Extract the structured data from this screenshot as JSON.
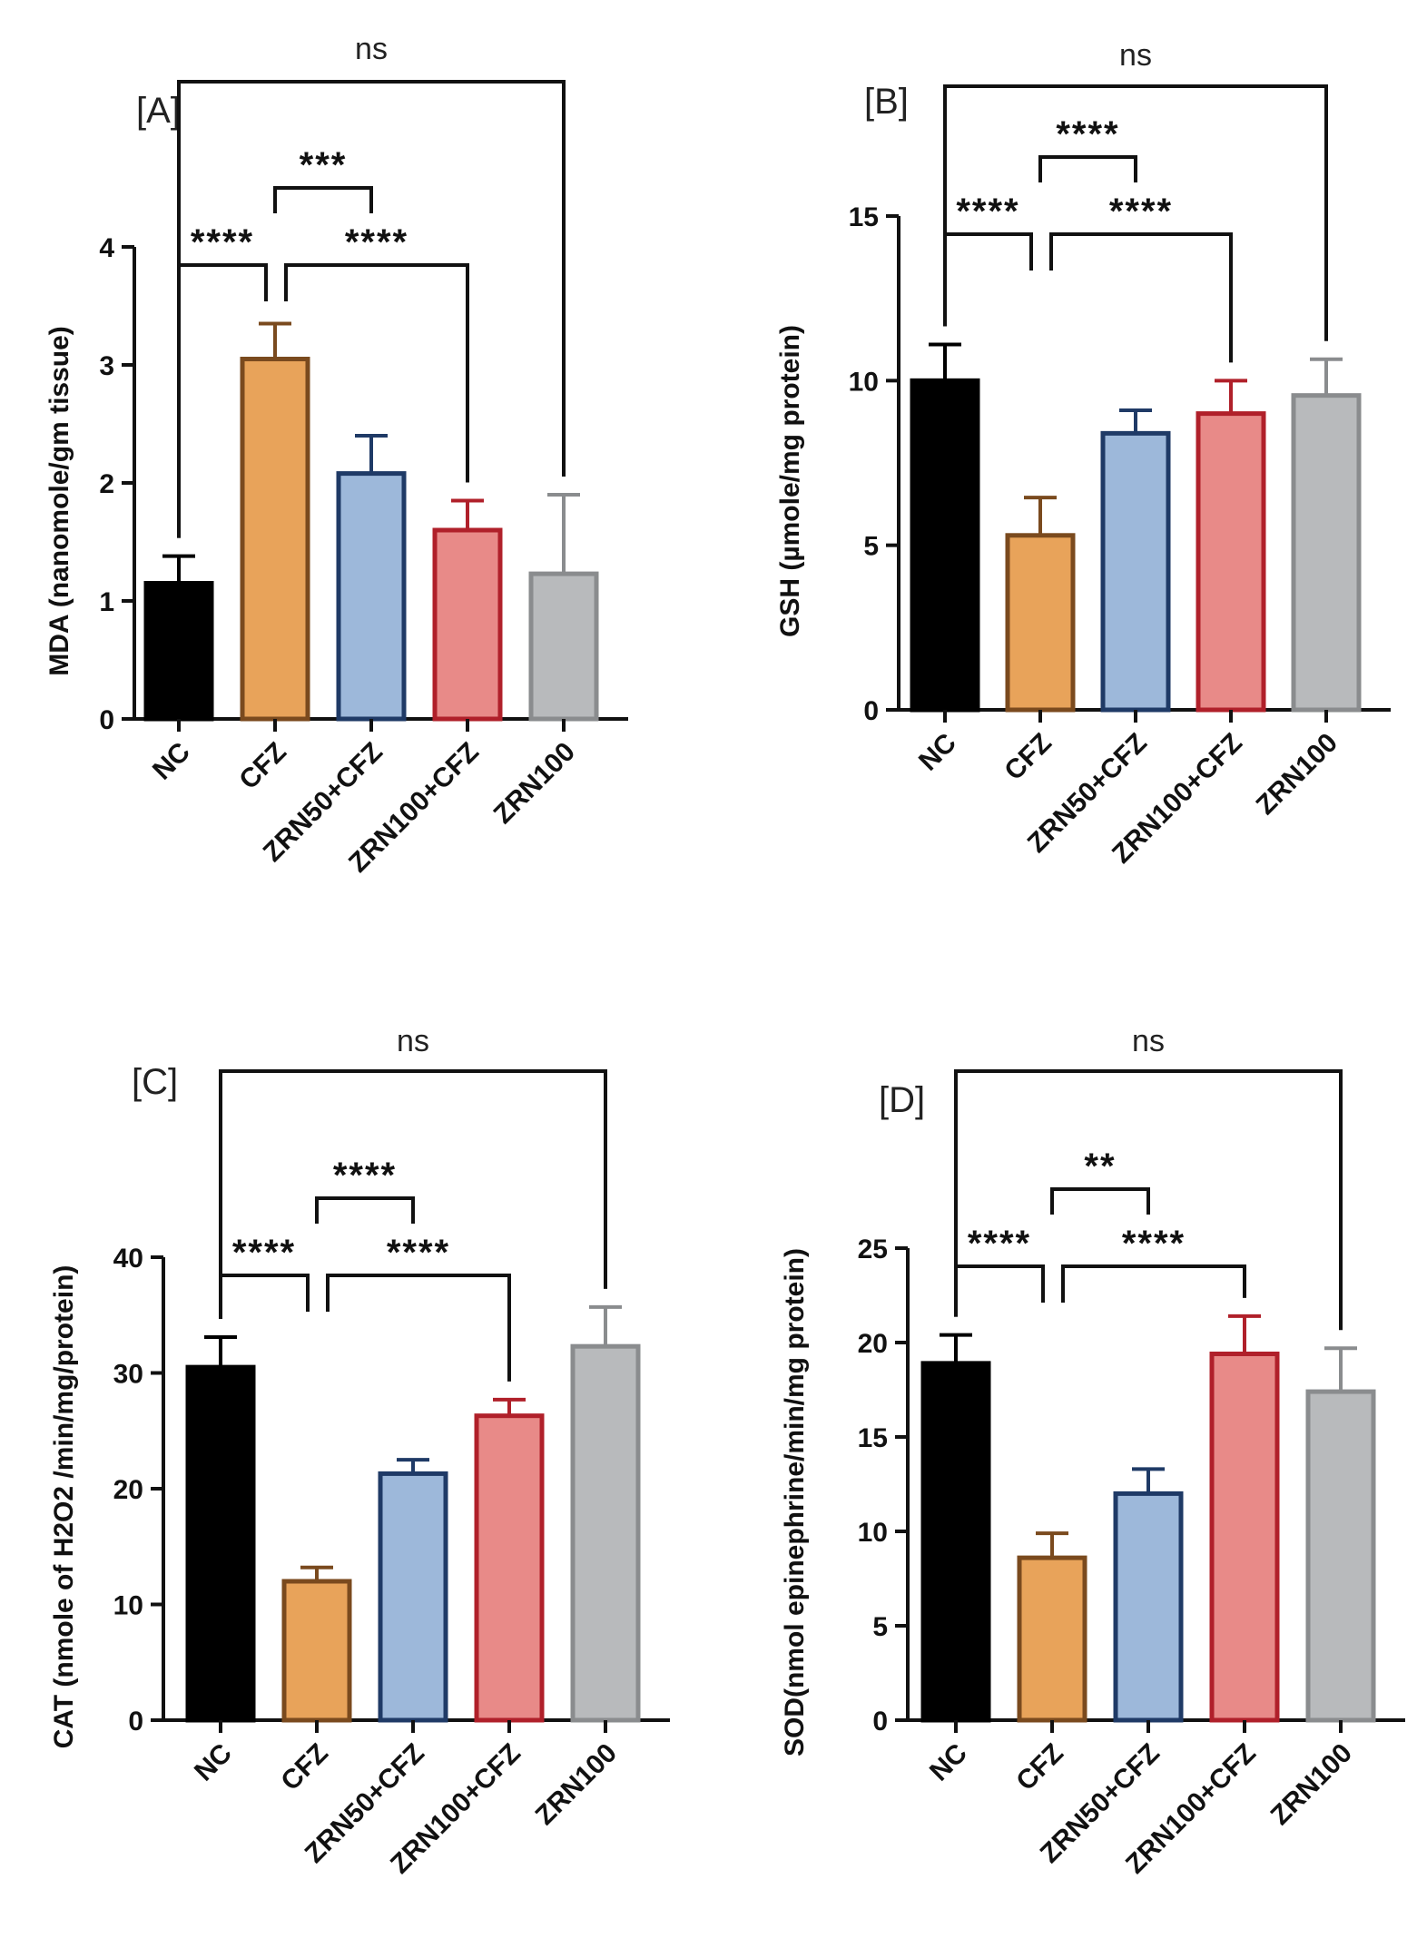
{
  "chart_data": [
    {
      "type": "bar",
      "panel_label": "[A]",
      "ylabel": "MDA (nanomole/gm tissue)",
      "categories": [
        "NC",
        "CFZ",
        "ZRN50+CFZ",
        "ZRN100+CFZ",
        "ZRN100"
      ],
      "values": [
        1.15,
        3.05,
        2.08,
        1.6,
        1.23
      ],
      "errors": [
        0.23,
        0.3,
        0.32,
        0.25,
        0.67
      ],
      "ylim": [
        0,
        4
      ],
      "yticks": [
        "0",
        "1",
        "2",
        "3",
        "4"
      ],
      "comparisons": [
        {
          "from": "NC",
          "to": "ZRN100",
          "label": "ns"
        },
        {
          "from": "CFZ",
          "to": "ZRN50+CFZ",
          "label": "***"
        },
        {
          "from": "NC",
          "to": "CFZ",
          "label": "****"
        },
        {
          "from": "CFZ",
          "to": "ZRN100+CFZ",
          "label": "****"
        }
      ]
    },
    {
      "type": "bar",
      "panel_label": "[B]",
      "ylabel": "GSH (µmole/mg protein)",
      "categories": [
        "NC",
        "CFZ",
        "ZRN50+CFZ",
        "ZRN100+CFZ",
        "ZRN100"
      ],
      "values": [
        10.0,
        5.3,
        8.4,
        9.0,
        9.55
      ],
      "errors": [
        1.1,
        1.15,
        0.7,
        1.0,
        1.1
      ],
      "ylim": [
        0,
        15
      ],
      "yticks": [
        "0",
        "5",
        "10",
        "15"
      ],
      "comparisons": [
        {
          "from": "NC",
          "to": "ZRN100",
          "label": "ns"
        },
        {
          "from": "CFZ",
          "to": "ZRN50+CFZ",
          "label": "****"
        },
        {
          "from": "NC",
          "to": "CFZ",
          "label": "****"
        },
        {
          "from": "CFZ",
          "to": "ZRN100+CFZ",
          "label": "****"
        }
      ]
    },
    {
      "type": "bar",
      "panel_label": "[C]",
      "ylabel": "CAT (nmole of H2O2 /min/mg/protein)",
      "categories": [
        "NC",
        "CFZ",
        "ZRN50+CFZ",
        "ZRN100+CFZ",
        "ZRN100"
      ],
      "values": [
        30.5,
        12.0,
        21.3,
        26.3,
        32.3
      ],
      "errors": [
        2.6,
        1.2,
        1.2,
        1.4,
        3.4
      ],
      "ylim": [
        0,
        40
      ],
      "yticks": [
        "0",
        "10",
        "20",
        "30",
        "40"
      ],
      "comparisons": [
        {
          "from": "NC",
          "to": "ZRN100",
          "label": "ns"
        },
        {
          "from": "CFZ",
          "to": "ZRN50+CFZ",
          "label": "****"
        },
        {
          "from": "NC",
          "to": "CFZ",
          "label": "****"
        },
        {
          "from": "CFZ",
          "to": "ZRN100+CFZ",
          "label": "****"
        }
      ]
    },
    {
      "type": "bar",
      "panel_label": "[D]",
      "ylabel": "SOD(nmol epinephrine/min/mg protein)",
      "categories": [
        "NC",
        "CFZ",
        "ZRN50+CFZ",
        "ZRN100+CFZ",
        "ZRN100"
      ],
      "values": [
        18.9,
        8.6,
        12.0,
        19.4,
        17.4
      ],
      "errors": [
        1.5,
        1.3,
        1.3,
        2.0,
        2.3
      ],
      "ylim": [
        0,
        25
      ],
      "yticks": [
        "0",
        "5",
        "10",
        "15",
        "20",
        "25"
      ],
      "comparisons": [
        {
          "from": "NC",
          "to": "ZRN100",
          "label": "ns"
        },
        {
          "from": "CFZ",
          "to": "ZRN50+CFZ",
          "label": "**"
        },
        {
          "from": "NC",
          "to": "CFZ",
          "label": "****"
        },
        {
          "from": "CFZ",
          "to": "ZRN100+CFZ",
          "label": "****"
        }
      ]
    }
  ],
  "bar_colors": {
    "fills": [
      "#000000",
      "#E8A35A",
      "#9DB8DA",
      "#E88A88",
      "#B8BABC"
    ],
    "strokes": [
      "#000000",
      "#7A4A1E",
      "#1F3A66",
      "#B0202A",
      "#8A8C8E"
    ]
  }
}
